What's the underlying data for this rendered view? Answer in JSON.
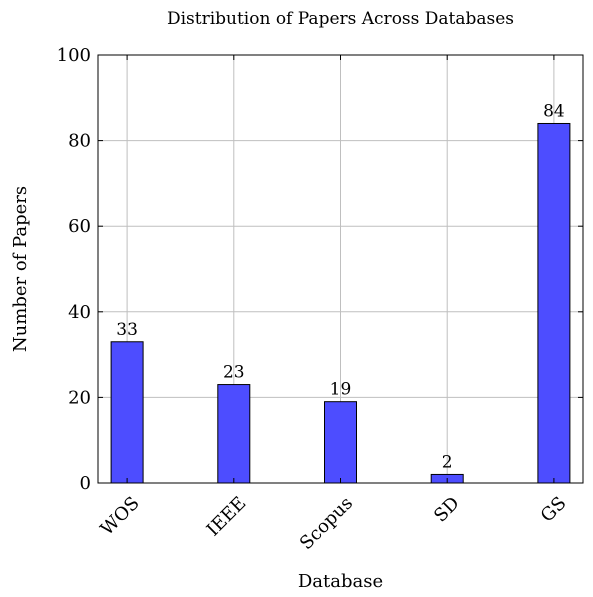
{
  "chart_data": {
    "type": "bar",
    "title": "Distribution of Papers Across Databases",
    "xlabel": "Database",
    "ylabel": "Number of Papers",
    "categories": [
      "WOS",
      "IEEE",
      "Scopus",
      "SD",
      "GS"
    ],
    "values": [
      33,
      23,
      19,
      2,
      84
    ],
    "ylim": [
      0,
      100
    ],
    "yticks": [
      0,
      20,
      40,
      60,
      80,
      100
    ],
    "grid": true,
    "legend": "none",
    "bar_color": "#4d4dff",
    "bar_edge_color": "#000000",
    "grid_color": "#bfbfbf"
  }
}
